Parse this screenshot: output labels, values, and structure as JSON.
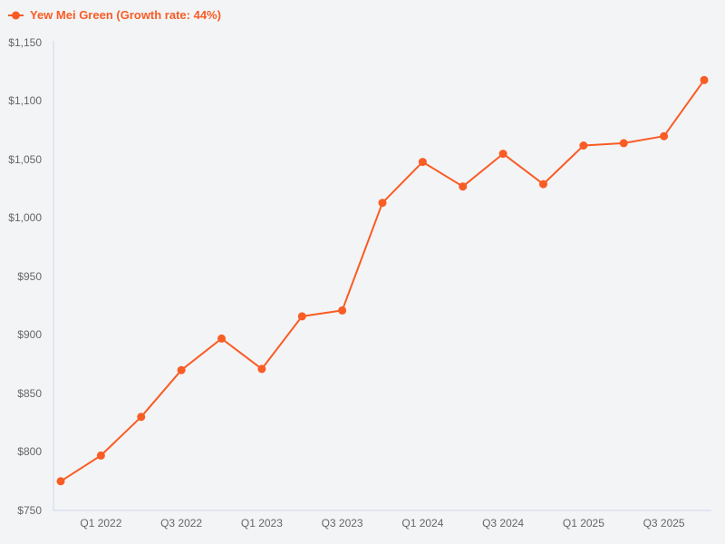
{
  "legend": {
    "label": "Yew Mei Green (Growth rate: 44%)",
    "series_name": "Yew Mei Green",
    "growth_rate": "44%"
  },
  "chart_data": {
    "type": "line",
    "title": "Yew Mei Green (Growth rate: 44%)",
    "categories": [
      "Q4 2021",
      "Q1 2022",
      "Q2 2022",
      "Q3 2022",
      "Q4 2022",
      "Q1 2023",
      "Q2 2023",
      "Q3 2023",
      "Q4 2023",
      "Q1 2024",
      "Q2 2024",
      "Q3 2024",
      "Q4 2024",
      "Q1 2025",
      "Q2 2025",
      "Q3 2025",
      "Q4 2025"
    ],
    "series": [
      {
        "name": "Yew Mei Green",
        "values": [
          775,
          797,
          830,
          870,
          897,
          871,
          916,
          921,
          1013,
          1048,
          1027,
          1055,
          1029,
          1062,
          1064,
          1070,
          1118
        ]
      }
    ],
    "xlabel": "",
    "ylabel": "",
    "ylim": [
      750,
      1150
    ],
    "y_ticks": {
      "values": [
        750,
        800,
        850,
        900,
        950,
        1000,
        1050,
        1100,
        1150
      ],
      "labels": [
        "$750",
        "$800",
        "$850",
        "$900",
        "$950",
        "$1,000",
        "$1,050",
        "$1,100",
        "$1,150"
      ]
    },
    "x_ticks": {
      "indices": [
        1,
        3,
        5,
        7,
        9,
        11,
        13,
        15
      ],
      "labels": [
        "Q1 2022",
        "Q3 2022",
        "Q1 2023",
        "Q3 2023",
        "Q1 2024",
        "Q3 2024",
        "Q1 2025",
        "Q3 2025"
      ]
    },
    "grid": false,
    "legend_position": "top-left",
    "colors": {
      "series": "#f95c24",
      "axis_line": "#ccd6eb",
      "tick_label": "#666666",
      "background": "#f3f4f6"
    }
  }
}
